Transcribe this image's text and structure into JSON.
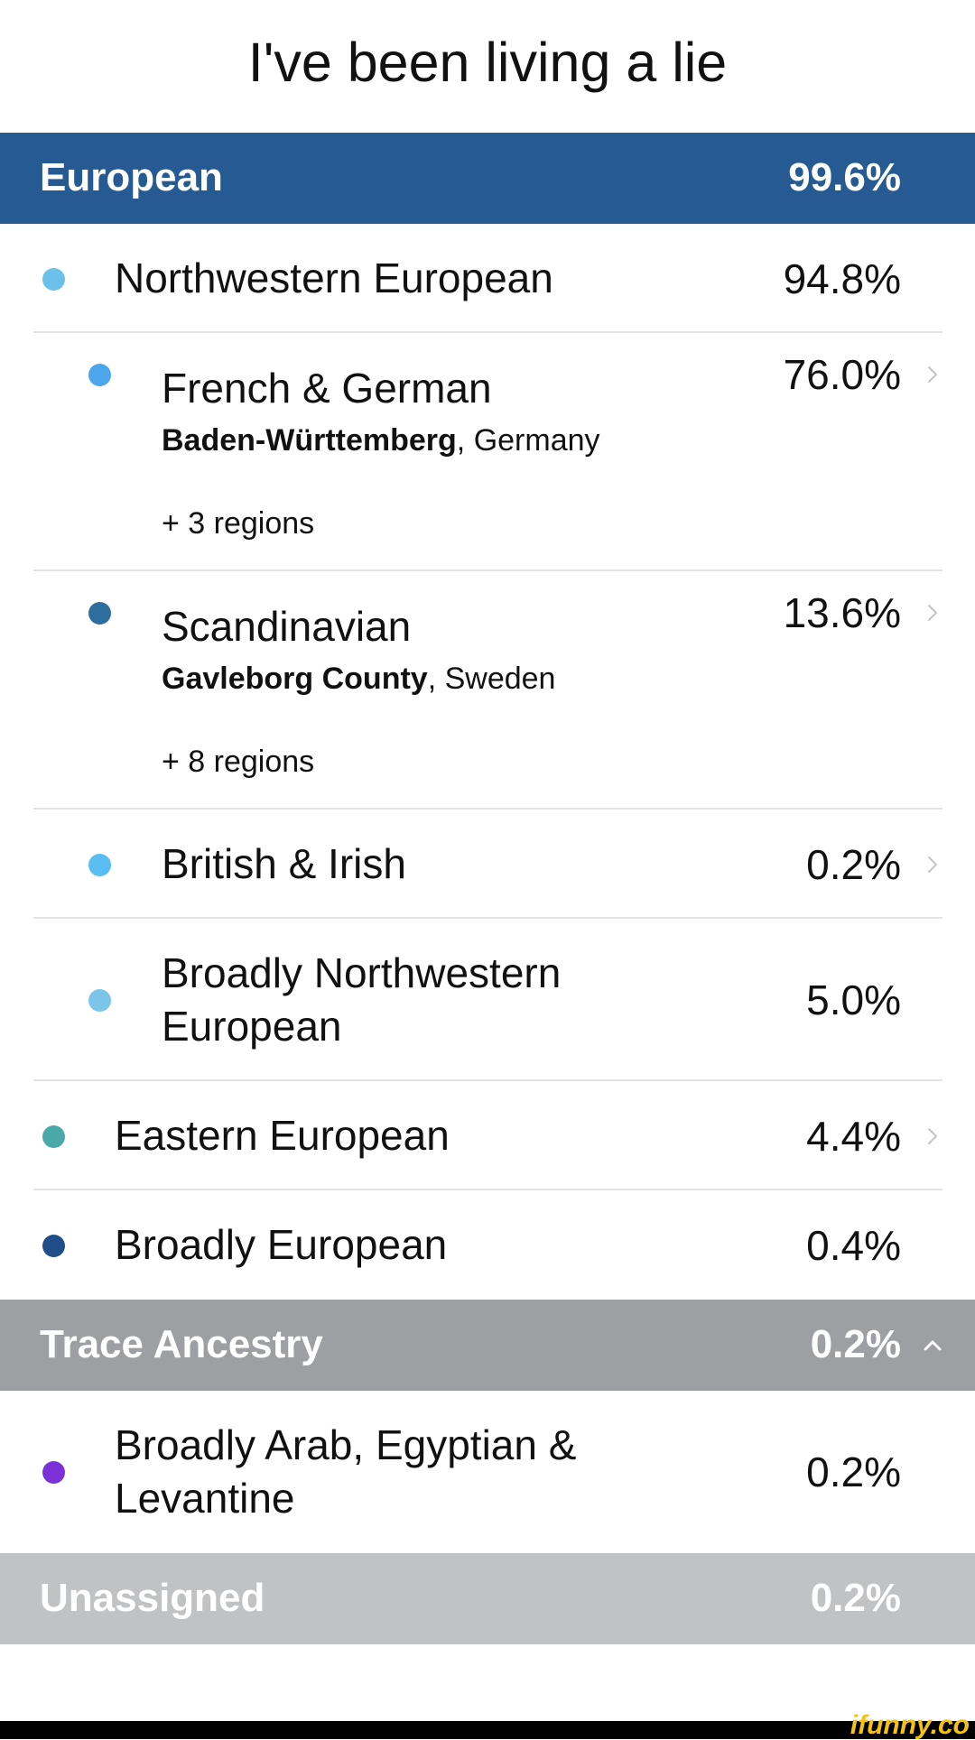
{
  "title": "I've been living a lie",
  "sections": [
    {
      "label": "European",
      "percent": "99.6%",
      "background": "#255a93",
      "rows": [
        {
          "name": "Northwestern European",
          "percent": "94.8%",
          "color": "#6cc0ea",
          "level": 1
        },
        {
          "name": "French & German",
          "percent": "76.0%",
          "color": "#4da6ec",
          "level": 2,
          "chevron": "right",
          "region_bold": "Baden-Württemberg",
          "region_rest": ", Germany",
          "more": "+ 3 regions"
        },
        {
          "name": "Scandinavian",
          "percent": "13.6%",
          "color": "#2e6e9e",
          "level": 2,
          "chevron": "right",
          "region_bold": "Gavleborg County",
          "region_rest": ", Sweden",
          "more": "+ 8 regions"
        },
        {
          "name": "British & Irish",
          "percent": "0.2%",
          "color": "#5abdf2",
          "level": 2,
          "chevron": "right"
        },
        {
          "name": "Broadly Northwestern European",
          "percent": "5.0%",
          "color": "#7cc5ea",
          "level": 2
        },
        {
          "name": "Eastern European",
          "percent": "4.4%",
          "color": "#4aa8a8",
          "level": 1,
          "chevron": "right"
        },
        {
          "name": "Broadly European",
          "percent": "0.4%",
          "color": "#1f4e89",
          "level": 1
        }
      ]
    },
    {
      "label": "Trace Ancestry",
      "percent": "0.2%",
      "background": "#9d9fa2",
      "chevron": "up",
      "rows": [
        {
          "name": "Broadly Arab, Egyptian & Levantine",
          "percent": "0.2%",
          "color": "#7b30d8",
          "level": 1
        }
      ]
    },
    {
      "label": "Unassigned",
      "percent": "0.2%",
      "background": "#c1c2c4",
      "rows": []
    }
  ],
  "watermark": "ifunny.co"
}
